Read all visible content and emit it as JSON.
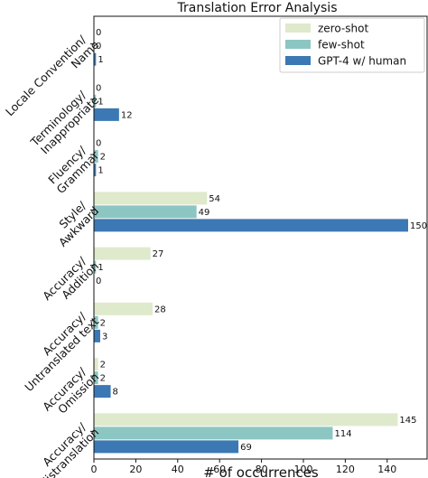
{
  "chart_data": {
    "type": "bar",
    "orientation": "horizontal",
    "title": "Translation Error Analysis",
    "xlabel": "# of occurrences",
    "ylabel": "",
    "xlim": [
      0,
      155
    ],
    "xticks": [
      "0",
      "20",
      "40",
      "60",
      "80",
      "100",
      "120",
      "140"
    ],
    "categories": [
      "Locale Convention/\nName",
      "Terminology/\nInappropriate",
      "Fluency/\nGrammar",
      "Style/\nAwkward",
      "Accuracy/\nAddition",
      "Accuracy/\nUntranslated text",
      "Accuracy/\nOmission",
      "Accuracy/\nMistranslation"
    ],
    "series": [
      {
        "name": "zero-shot",
        "color": "#dfe9cc",
        "values": [
          0,
          0,
          0,
          54,
          27,
          28,
          2,
          145
        ]
      },
      {
        "name": "few-shot",
        "color": "#8cc6c2",
        "values": [
          0,
          1,
          2,
          49,
          1,
          2,
          2,
          114
        ]
      },
      {
        "name": "GPT-4 w/ human",
        "color": "#3b78b4",
        "values": [
          1,
          12,
          1,
          150,
          0,
          3,
          8,
          69
        ]
      }
    ],
    "legend": "top-right",
    "grid": false
  }
}
